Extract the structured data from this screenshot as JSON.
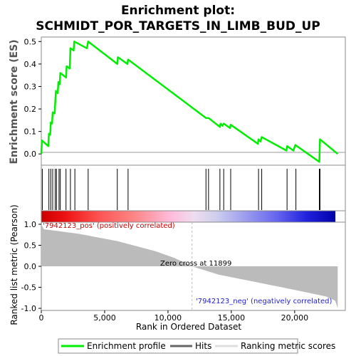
{
  "title_line1": "Enrichment plot:",
  "title_line2": "SCHMIDT_POR_TARGETS_IN_LIMB_BUD_UP",
  "es_ylabel": "Enrichment score (ES)",
  "metric_ylabel": "Ranked list metric (Pearson)",
  "xlabel": "Rank in Ordered Dataset",
  "pos_label": "'7942123_pos' (positively correlated)",
  "neg_label": "'7942123_neg' (negatively correlated)",
  "zero_cross_label": "Zero cross at 11899",
  "legend": {
    "enrichment": "Enrichment profile",
    "hits": "Hits",
    "metric": "Ranking metric scores"
  },
  "colors": {
    "enrichment_line": "#00ee00",
    "hit_line": "#000000",
    "metric_fill": "#bbbbbb"
  },
  "chart_data": [
    {
      "type": "line",
      "name": "enrichment-profile",
      "xlim": [
        0,
        24000
      ],
      "ylim": [
        -0.05,
        0.52
      ],
      "yticks": [
        0.0,
        0.1,
        0.2,
        0.3,
        0.4,
        0.5
      ],
      "ytick_labels": [
        "0.0",
        "0.1",
        "0.2",
        "0.3",
        "0.4",
        "0.5"
      ],
      "points": [
        [
          0,
          0.0
        ],
        [
          50,
          0.06
        ],
        [
          550,
          0.035
        ],
        [
          600,
          0.09
        ],
        [
          700,
          0.085
        ],
        [
          750,
          0.14
        ],
        [
          850,
          0.135
        ],
        [
          900,
          0.185
        ],
        [
          1050,
          0.18
        ],
        [
          1100,
          0.23
        ],
        [
          1150,
          0.28
        ],
        [
          1300,
          0.27
        ],
        [
          1350,
          0.32
        ],
        [
          1450,
          0.31
        ],
        [
          1500,
          0.36
        ],
        [
          1950,
          0.34
        ],
        [
          2000,
          0.39
        ],
        [
          2250,
          0.38
        ],
        [
          2300,
          0.47
        ],
        [
          2550,
          0.46
        ],
        [
          2600,
          0.5
        ],
        [
          3600,
          0.47
        ],
        [
          3700,
          0.5
        ],
        [
          6000,
          0.4
        ],
        [
          6050,
          0.43
        ],
        [
          6800,
          0.4
        ],
        [
          6850,
          0.42
        ],
        [
          13000,
          0.16
        ],
        [
          13200,
          0.16
        ],
        [
          14100,
          0.12
        ],
        [
          14150,
          0.135
        ],
        [
          14300,
          0.125
        ],
        [
          14400,
          0.135
        ],
        [
          14900,
          0.115
        ],
        [
          14950,
          0.13
        ],
        [
          17100,
          0.045
        ],
        [
          17150,
          0.065
        ],
        [
          17300,
          0.055
        ],
        [
          17400,
          0.075
        ],
        [
          19350,
          0.015
        ],
        [
          19400,
          0.035
        ],
        [
          19900,
          0.015
        ],
        [
          20050,
          0.04
        ],
        [
          21950,
          -0.035
        ],
        [
          22000,
          0.065
        ],
        [
          23400,
          0.0
        ]
      ]
    },
    {
      "type": "line",
      "name": "hits",
      "x": [
        80,
        600,
        750,
        900,
        1100,
        1200,
        1400,
        1500,
        1950,
        2300,
        2650,
        3700,
        6000,
        6850,
        13000,
        13200,
        14100,
        14400,
        14950,
        17150,
        17400,
        19400,
        20100,
        21950,
        22000
      ]
    },
    {
      "type": "area",
      "name": "ranking-metric",
      "xlim": [
        0,
        24000
      ],
      "ylim": [
        -1.05,
        1.05
      ],
      "xticks": [
        0,
        5000,
        10000,
        15000,
        20000
      ],
      "xtick_labels": [
        "0",
        "5,000",
        "10,000",
        "15,000",
        "20,000"
      ],
      "yticks": [
        1.0,
        0.5,
        0.0,
        -0.5,
        -1.0
      ],
      "ytick_labels": [
        "1.0",
        "0.5",
        "0.0",
        "-0.5",
        "-1.0"
      ],
      "zero_cross": 11899,
      "points": [
        [
          0,
          1.0
        ],
        [
          200,
          0.88
        ],
        [
          1000,
          0.85
        ],
        [
          3000,
          0.77
        ],
        [
          6000,
          0.6
        ],
        [
          9000,
          0.36
        ],
        [
          10500,
          0.2
        ],
        [
          11899,
          0.0
        ],
        [
          14000,
          -0.2
        ],
        [
          17000,
          -0.38
        ],
        [
          20000,
          -0.56
        ],
        [
          22500,
          -0.72
        ],
        [
          23200,
          -0.82
        ],
        [
          23400,
          -1.0
        ]
      ]
    }
  ]
}
